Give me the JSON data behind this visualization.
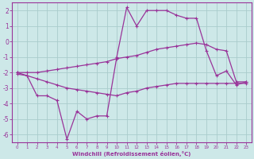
{
  "xlabel": "Windchill (Refroidissement éolien,°C)",
  "bg_color": "#cde8e8",
  "grid_color": "#aacccc",
  "line_color": "#993399",
  "xlim": [
    -0.5,
    23.5
  ],
  "ylim": [
    -6.5,
    2.5
  ],
  "xticks": [
    0,
    1,
    2,
    3,
    4,
    5,
    6,
    7,
    8,
    9,
    10,
    11,
    12,
    13,
    14,
    15,
    16,
    17,
    18,
    19,
    20,
    21,
    22,
    23
  ],
  "yticks": [
    -6,
    -5,
    -4,
    -3,
    -2,
    -1,
    0,
    1,
    2
  ],
  "line1_x": [
    0,
    1,
    2,
    3,
    4,
    5,
    6,
    7,
    8,
    9,
    10,
    11,
    12,
    13,
    14,
    15,
    16,
    17,
    18,
    19,
    20,
    21,
    22,
    23
  ],
  "line1_y": [
    -2.0,
    -2.2,
    -3.5,
    -3.5,
    -3.8,
    -6.3,
    -4.5,
    -5.0,
    -4.8,
    -4.8,
    -1.0,
    2.2,
    1.0,
    2.0,
    2.0,
    2.0,
    1.7,
    1.5,
    1.5,
    -0.6,
    -2.2,
    -1.9,
    -2.8,
    -2.6
  ],
  "line2_x": [
    0,
    1,
    2,
    3,
    4,
    5,
    6,
    7,
    8,
    9,
    10,
    11,
    12,
    13,
    14,
    15,
    16,
    17,
    18,
    19,
    20,
    21,
    22,
    23
  ],
  "line2_y": [
    -2.0,
    -2.0,
    -2.0,
    -1.9,
    -1.8,
    -1.7,
    -1.6,
    -1.5,
    -1.4,
    -1.3,
    -1.1,
    -1.0,
    -0.9,
    -0.7,
    -0.5,
    -0.4,
    -0.3,
    -0.2,
    -0.1,
    -0.2,
    -0.5,
    -0.6,
    -2.6,
    -2.6
  ],
  "line3_x": [
    0,
    1,
    2,
    3,
    4,
    5,
    6,
    7,
    8,
    9,
    10,
    11,
    12,
    13,
    14,
    15,
    16,
    17,
    18,
    19,
    20,
    21,
    22,
    23
  ],
  "line3_y": [
    -2.1,
    -2.2,
    -2.4,
    -2.6,
    -2.8,
    -3.0,
    -3.1,
    -3.2,
    -3.3,
    -3.4,
    -3.5,
    -3.3,
    -3.2,
    -3.0,
    -2.9,
    -2.8,
    -2.7,
    -2.7,
    -2.7,
    -2.7,
    -2.7,
    -2.7,
    -2.7,
    -2.7
  ]
}
